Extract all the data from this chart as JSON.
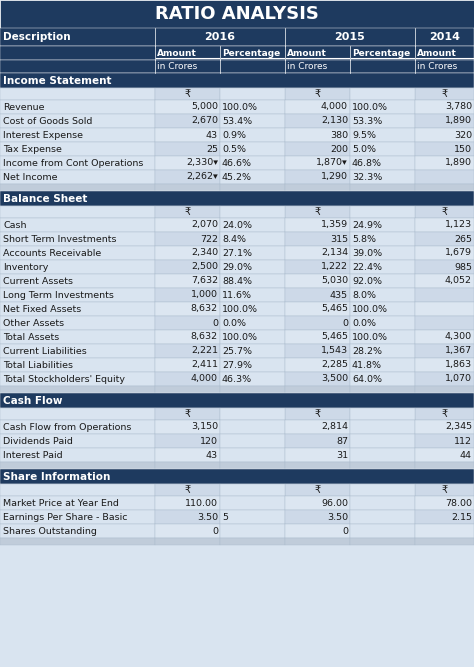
{
  "title": "RATIO ANALYSIS",
  "header_bg": "#1e3a5f",
  "header_text": "#ffffff",
  "section_bg": "#1e3a5f",
  "section_text": "#ffffff",
  "row_bg_light": "#d9e4f0",
  "row_bg_medium": "#c5d8ec",
  "row_bg_white": "#e8e8d8",
  "col_headers": [
    "Description",
    "2016",
    "",
    "2015",
    "",
    "2014"
  ],
  "col_sub1": [
    "",
    "Amount",
    "Percentage",
    "Amount",
    "Percentage",
    "Amount"
  ],
  "col_sub2": [
    "",
    "in Crores",
    "",
    "in Crores",
    "",
    "in Crores"
  ],
  "sections": [
    {
      "name": "Income Statement",
      "rows": [
        [
          "Revenue",
          "5,000",
          "100.0%",
          "4,000",
          "100.0%",
          "3,780"
        ],
        [
          "Cost of Goods Sold",
          "2,670",
          "53.4%",
          "2,130",
          "53.3%",
          "1,890"
        ],
        [
          "Interest Expense",
          "43",
          "0.9%",
          "380",
          "9.5%",
          "320"
        ],
        [
          "Tax Expense",
          "25",
          "0.5%",
          "200",
          "5.0%",
          "150"
        ],
        [
          "Income from Cont Operations",
          "2,330▾",
          "46.6%",
          "1,870▾",
          "46.8%",
          "1,890"
        ],
        [
          "Net Income",
          "2,262▾",
          "45.2%",
          "1,290",
          "32.3%",
          ""
        ],
        [
          "",
          "",
          "",
          "",
          "",
          ""
        ]
      ]
    },
    {
      "name": "Balance Sheet",
      "rows": [
        [
          "Cash",
          "2,070",
          "24.0%",
          "1,359",
          "24.9%",
          "1,123"
        ],
        [
          "Short Term Investments",
          "722",
          "8.4%",
          "315",
          "5.8%",
          "265"
        ],
        [
          "Accounts Receivable",
          "2,340",
          "27.1%",
          "2,134",
          "39.0%",
          "1,679"
        ],
        [
          "Inventory",
          "2,500",
          "29.0%",
          "1,222",
          "22.4%",
          "985"
        ],
        [
          "Current Assets",
          "7,632",
          "88.4%",
          "5,030",
          "92.0%",
          "4,052"
        ],
        [
          "Long Term Investments",
          "1,000",
          "11.6%",
          "435",
          "8.0%",
          ""
        ],
        [
          "Net Fixed Assets",
          "8,632",
          "100.0%",
          "5,465",
          "100.0%",
          ""
        ],
        [
          "Other Assets",
          "0",
          "0.0%",
          "0",
          "0.0%",
          ""
        ],
        [
          "Total Assets",
          "8,632",
          "100.0%",
          "5,465",
          "100.0%",
          "4,300"
        ],
        [
          "Current Liabilities",
          "2,221",
          "25.7%",
          "1,543",
          "28.2%",
          "1,367"
        ],
        [
          "Total Liabilities",
          "2,411",
          "27.9%",
          "2,285",
          "41.8%",
          "1,863"
        ],
        [
          "Total Stockholders' Equity",
          "4,000",
          "46.3%",
          "3,500",
          "64.0%",
          "1,070"
        ],
        [
          "",
          "",
          "",
          "",
          "",
          ""
        ]
      ]
    },
    {
      "name": "Cash Flow",
      "rows": [
        [
          "Cash Flow from Operations",
          "3,150",
          "",
          "2,814",
          "",
          "2,345"
        ],
        [
          "Dividends Paid",
          "120",
          "",
          "87",
          "",
          "112"
        ],
        [
          "Interest Paid",
          "43",
          "",
          "31",
          "",
          "44"
        ],
        [
          "",
          "",
          "",
          "",
          "",
          ""
        ]
      ]
    },
    {
      "name": "Share Information",
      "rows": [
        [
          "Market Price at Year End",
          "110.00",
          "",
          "96.00",
          "",
          "78.00"
        ],
        [
          "Earnings Per Share - Basic",
          "3.50",
          "5",
          "3.50",
          "",
          "2.15"
        ],
        [
          "Shares Outstanding",
          "0",
          "",
          "0",
          "",
          ""
        ],
        [
          "",
          "",
          "",
          "",
          "",
          ""
        ]
      ]
    }
  ]
}
